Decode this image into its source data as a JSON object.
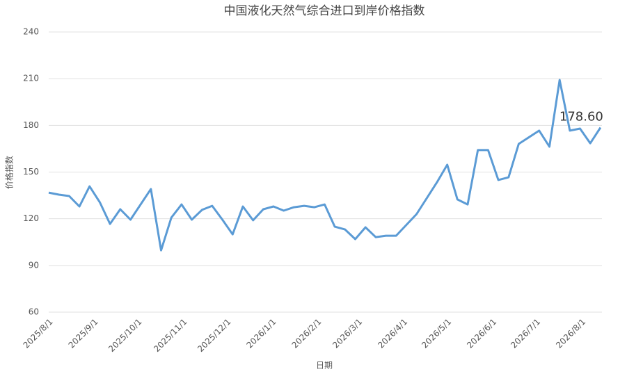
{
  "chart_data": {
    "type": "line",
    "title": "中国液化天然气综合进口到岸价格指数",
    "x_label": "日期",
    "y_label": "价格指数",
    "x": [
      "2025/8/1",
      "2025/8/8",
      "2025/8/15",
      "2025/8/22",
      "2025/8/29",
      "2025/9/5",
      "2025/9/12",
      "2025/9/19",
      "2025/9/26",
      "2025/10/10",
      "2025/10/17",
      "2025/10/24",
      "2025/10/31",
      "2025/11/7",
      "2025/11/14",
      "2025/11/21",
      "2025/11/28",
      "2025/12/5",
      "2025/12/12",
      "2025/12/19",
      "2025/12/26",
      "2026/1/2",
      "2026/1/9",
      "2026/1/16",
      "2026/1/23",
      "2026/1/30",
      "2026/2/6",
      "2026/2/13",
      "2026/2/20",
      "2026/2/27",
      "2026/3/6",
      "2026/3/13",
      "2026/3/20",
      "2026/3/27",
      "2026/4/10",
      "2026/4/24",
      "2026/5/1",
      "2026/5/8",
      "2026/5/15",
      "2026/5/22",
      "2026/5/29",
      "2026/6/5",
      "2026/6/12",
      "2026/6/19",
      "2026/7/3",
      "2026/7/10",
      "2026/7/17",
      "2026/7/24",
      "2026/7/31",
      "2026/8/7",
      "2026/8/14"
    ],
    "series": [
      {
        "name": "价格指数",
        "color": "#5b9bd5",
        "values": [
          136.8,
          135.5,
          134.6,
          127.9,
          140.8,
          130.6,
          116.7,
          126.1,
          119.4,
          139.1,
          99.7,
          120.7,
          129.2,
          119.4,
          125.7,
          128.3,
          119.4,
          110.0,
          127.9,
          119.0,
          126.1,
          127.9,
          125.2,
          127.4,
          128.3,
          127.4,
          129.2,
          114.9,
          113.1,
          106.9,
          114.5,
          108.2,
          109.1,
          109.1,
          123.0,
          143.5,
          154.7,
          132.4,
          129.2,
          164.1,
          164.1,
          144.9,
          146.6,
          168.1,
          176.6,
          166.3,
          209.2,
          176.6,
          177.9,
          168.5,
          178.6
        ],
        "value_labels": [
          null,
          null,
          null,
          null,
          null,
          null,
          null,
          null,
          null,
          null,
          null,
          null,
          null,
          null,
          null,
          null,
          null,
          null,
          null,
          null,
          null,
          null,
          null,
          null,
          null,
          null,
          null,
          null,
          null,
          null,
          null,
          null,
          null,
          null,
          null,
          null,
          null,
          null,
          null,
          null,
          null,
          null,
          null,
          null,
          null,
          null,
          null,
          null,
          null,
          null,
          "178.60"
        ]
      }
    ],
    "xlim": [
      "2025/8/1",
      "2026/8/15"
    ],
    "xticks": [
      "2025/8/1",
      "2025/9/1",
      "2025/10/1",
      "2025/11/1",
      "2025/12/1",
      "2026/1/1",
      "2026/2/1",
      "2026/3/1",
      "2026/4/1",
      "2026/5/1",
      "2026/6/1",
      "2026/7/1",
      "2026/8/1"
    ],
    "ylim": [
      60,
      240
    ],
    "yticks": [
      60,
      90,
      120,
      150,
      180,
      210,
      240
    ],
    "grid": true
  }
}
